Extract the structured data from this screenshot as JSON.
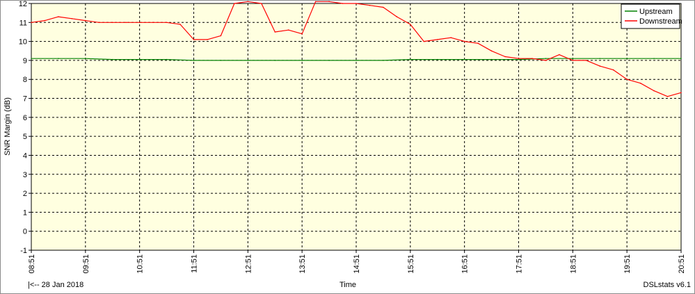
{
  "chart_data": {
    "type": "line",
    "title": "",
    "ylabel": "SNR Margin (dB)",
    "xlabel": "Time",
    "ylim": [
      -1,
      12
    ],
    "yticks": [
      -1,
      0,
      1,
      2,
      3,
      4,
      5,
      6,
      7,
      8,
      9,
      10,
      11,
      12
    ],
    "x_tick_labels": [
      "08:51",
      "09:51",
      "10:51",
      "11:51",
      "12:51",
      "13:51",
      "14:51",
      "15:51",
      "16:51",
      "17:51",
      "18:51",
      "19:51",
      "20:51"
    ],
    "x_range": [
      "08:51",
      "20:51"
    ],
    "grid": true,
    "legend_position": "top-right",
    "series": [
      {
        "name": "Upstream",
        "color": "#008000",
        "x": [
          "08:51",
          "09:21",
          "09:51",
          "10:21",
          "10:51",
          "11:21",
          "11:51",
          "12:21",
          "12:51",
          "13:21",
          "13:51",
          "14:21",
          "14:51",
          "15:21",
          "15:51",
          "16:21",
          "16:51",
          "17:21",
          "17:51",
          "18:21",
          "18:51",
          "19:21",
          "19:51",
          "20:21",
          "20:51"
        ],
        "values": [
          9.1,
          9.1,
          9.1,
          9.05,
          9.05,
          9.05,
          9.0,
          9.0,
          9.0,
          9.0,
          9.0,
          9.0,
          9.0,
          9.0,
          9.05,
          9.05,
          9.05,
          9.05,
          9.05,
          9.1,
          9.1,
          9.1,
          9.1,
          9.1,
          9.1
        ]
      },
      {
        "name": "Downstream",
        "color": "#ff0000",
        "x": [
          "08:51",
          "09:06",
          "09:21",
          "09:36",
          "09:51",
          "10:06",
          "10:21",
          "10:36",
          "10:51",
          "11:06",
          "11:21",
          "11:36",
          "11:51",
          "12:06",
          "12:21",
          "12:36",
          "12:51",
          "13:06",
          "13:21",
          "13:36",
          "13:51",
          "14:06",
          "14:21",
          "14:36",
          "14:51",
          "15:06",
          "15:21",
          "15:36",
          "15:51",
          "16:06",
          "16:21",
          "16:36",
          "16:51",
          "17:06",
          "17:21",
          "17:36",
          "17:51",
          "18:06",
          "18:21",
          "18:36",
          "18:51",
          "19:06",
          "19:21",
          "19:36",
          "19:51",
          "20:06",
          "20:21",
          "20:36",
          "20:51"
        ],
        "values": [
          11.0,
          11.1,
          11.3,
          11.2,
          11.1,
          11.0,
          11.0,
          11.0,
          11.0,
          11.0,
          11.0,
          10.9,
          10.1,
          10.1,
          10.3,
          12.0,
          12.1,
          12.0,
          10.5,
          10.6,
          10.4,
          12.1,
          12.1,
          12.0,
          12.0,
          11.9,
          11.8,
          11.3,
          10.9,
          10.0,
          10.1,
          10.2,
          10.0,
          9.9,
          9.5,
          9.2,
          9.1,
          9.1,
          9.0,
          9.3,
          9.0,
          9.0,
          8.7,
          8.5,
          8.0,
          7.8,
          7.4,
          7.1,
          7.3
        ]
      }
    ]
  },
  "footer": {
    "left": "|<-- 28 Jan 2018",
    "center": "Time",
    "right": "DSLstats v6.1"
  }
}
